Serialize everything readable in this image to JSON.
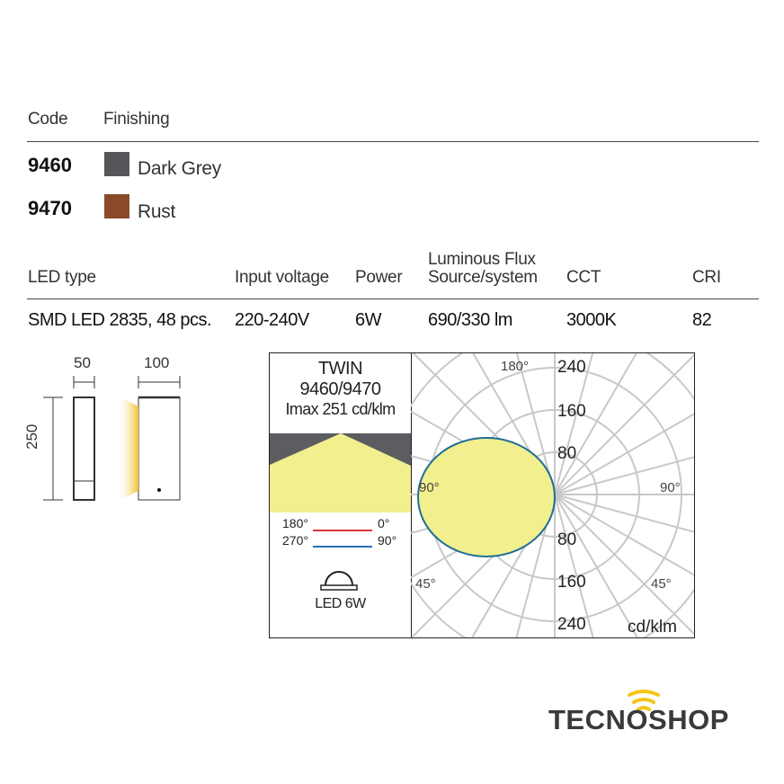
{
  "finishing": {
    "headers": {
      "code": "Code",
      "finishing": "Finishing"
    },
    "rows": [
      {
        "code": "9460",
        "name": "Dark Grey",
        "color": "#55565a"
      },
      {
        "code": "9470",
        "name": "Rust",
        "color": "#8a4a2a"
      }
    ]
  },
  "specs": {
    "headers": {
      "led": "LED type",
      "voltage": "Input voltage",
      "power": "Power",
      "flux_line1": "Luminous Flux",
      "flux_line2": "Source/system",
      "cct": "CCT",
      "cri": "CRI"
    },
    "values": {
      "led": "SMD LED 2835, 48 pcs.",
      "voltage": "220-240V",
      "power": "6W",
      "flux": "690/330 lm",
      "cct": "3000K",
      "cri": "82"
    }
  },
  "dimensions": {
    "depth": "50",
    "width": "100",
    "height": "250"
  },
  "photometry": {
    "name": "TWIN",
    "codes": "9460/9470",
    "imax": "Imax 251 cd/klm",
    "legend": {
      "a_left": "180°",
      "a_right": "0°",
      "b_left": "270°",
      "b_right": "90°",
      "a_color": "#d9363e",
      "b_color": "#2a6fb5"
    },
    "source_label": "LED 6W",
    "angles": {
      "top": "180°",
      "left": "90°",
      "right": "90°",
      "bl": "45°",
      "br": "45°"
    },
    "rings_up": [
      "240",
      "160",
      "80"
    ],
    "rings_down": [
      "80",
      "160",
      "240"
    ],
    "unit": "cd/klm",
    "fill_color": "#f2ef8f",
    "curve_color": "#1f6e96"
  },
  "logo": {
    "text_a": "TECN",
    "text_o": "O",
    "text_b": "SHOP",
    "accent": "#f5c518"
  }
}
